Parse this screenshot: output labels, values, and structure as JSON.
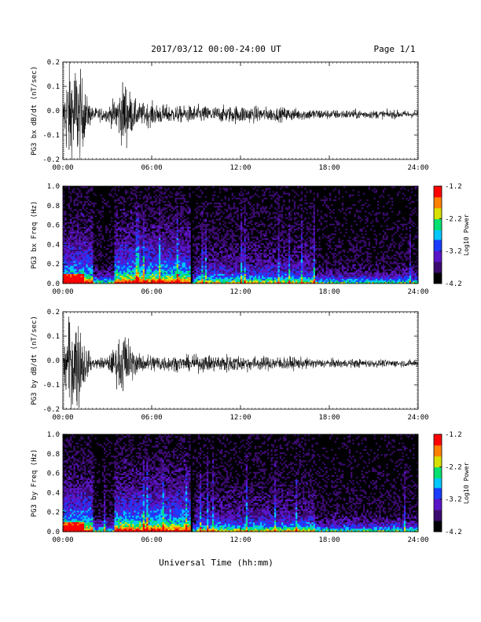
{
  "header": {
    "title": "2017/03/12  00:00-24:00 UT",
    "page": "Page 1/1"
  },
  "x_axis": {
    "label": "Universal Time (hh:mm)",
    "ticks": [
      "00:00",
      "06:00",
      "12:00",
      "18:00",
      "24:00"
    ],
    "range_hours": [
      0,
      24
    ]
  },
  "colorbar": {
    "label": "Log10 Power",
    "ticks": [
      "-1.2",
      "-2.2",
      "-3.2",
      "-4.2"
    ],
    "range": [
      -4.2,
      -1.2
    ],
    "colors": [
      "#000000",
      "#3a0a6e",
      "#5a14c8",
      "#1a3cff",
      "#00c8ff",
      "#00e070",
      "#d8e000",
      "#ff8000",
      "#ff0000"
    ]
  },
  "chart_data": [
    {
      "type": "line",
      "ylabel": "PG3 bx dB/dt (nT/sec)",
      "ylim": [
        -0.2,
        0.2
      ],
      "yticks": [
        "0.2",
        "0.1",
        "0.0",
        "-0.1",
        "-0.2"
      ],
      "xlim": [
        0,
        24
      ],
      "amplitude_envelope": {
        "hours": [
          0,
          0.2,
          0.5,
          1.0,
          1.3,
          1.6,
          2.0,
          3.0,
          3.4,
          3.8,
          4.2,
          4.6,
          5.0,
          6.0,
          7.0,
          8.0,
          9.0,
          10.0,
          11.0,
          12.0,
          13.0,
          14.0,
          15.0,
          16.0,
          17.0,
          18.0,
          19.0,
          20.0,
          21.0,
          22.0,
          23.0,
          24.0
        ],
        "amplitude": [
          0.02,
          0.18,
          0.24,
          0.22,
          0.16,
          0.08,
          0.03,
          0.03,
          0.06,
          0.1,
          0.16,
          0.09,
          0.05,
          0.05,
          0.04,
          0.035,
          0.04,
          0.035,
          0.035,
          0.04,
          0.035,
          0.03,
          0.03,
          0.025,
          0.025,
          0.02,
          0.02,
          0.02,
          0.018,
          0.018,
          0.017,
          0.015
        ]
      },
      "baseline": -0.015
    },
    {
      "type": "heatmap",
      "ylabel": "PG3 bx Freq (Hz)",
      "ylim": [
        0.0,
        1.0
      ],
      "yticks": [
        "1.0",
        "0.8",
        "0.6",
        "0.4",
        "0.2",
        "0.0"
      ],
      "xlim": [
        0,
        24
      ],
      "data_gap_hour": 8.7,
      "active_intervals_hours": [
        [
          0,
          2
        ],
        [
          3.5,
          8.7
        ]
      ]
    },
    {
      "type": "line",
      "ylabel": "PG3 by dB/dt (nT/sec)",
      "ylim": [
        -0.2,
        0.2
      ],
      "yticks": [
        "0.2",
        "0.1",
        "0.0",
        "-0.1",
        "-0.2"
      ],
      "xlim": [
        0,
        24
      ],
      "amplitude_envelope": {
        "hours": [
          0,
          0.2,
          0.5,
          1.0,
          1.3,
          1.6,
          2.0,
          3.0,
          3.4,
          3.8,
          4.2,
          4.6,
          5.0,
          6.0,
          7.0,
          8.0,
          9.0,
          10.0,
          11.0,
          12.0,
          13.0,
          14.0,
          15.0,
          16.0,
          17.0,
          18.0,
          19.0,
          20.0,
          21.0,
          22.0,
          23.0,
          24.0
        ],
        "amplitude": [
          0.02,
          0.15,
          0.22,
          0.2,
          0.14,
          0.07,
          0.02,
          0.03,
          0.06,
          0.11,
          0.15,
          0.08,
          0.04,
          0.04,
          0.035,
          0.03,
          0.035,
          0.035,
          0.04,
          0.035,
          0.03,
          0.03,
          0.03,
          0.025,
          0.02,
          0.02,
          0.018,
          0.018,
          0.016,
          0.016,
          0.015,
          0.015
        ]
      },
      "baseline": -0.012
    },
    {
      "type": "heatmap",
      "ylabel": "PG3 by Freq (Hz)",
      "ylim": [
        0.0,
        1.0
      ],
      "yticks": [
        "1.0",
        "0.8",
        "0.6",
        "0.4",
        "0.2",
        "0.0"
      ],
      "xlim": [
        0,
        24
      ],
      "data_gap_hour": 8.7,
      "active_intervals_hours": [
        [
          0,
          2
        ],
        [
          3.5,
          8.7
        ]
      ]
    }
  ]
}
